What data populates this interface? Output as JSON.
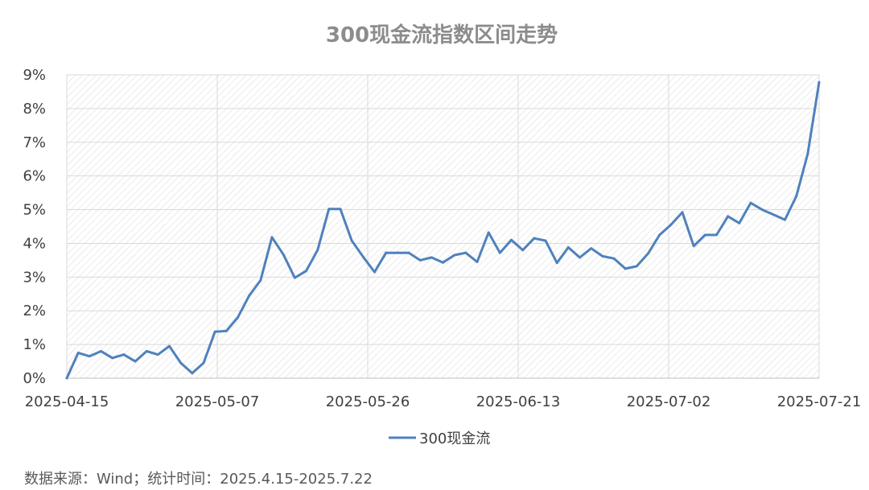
{
  "chart_data": {
    "type": "line",
    "title": "300现金流指数区间走势",
    "xlabel": "",
    "ylabel": "",
    "ylim": [
      0,
      9
    ],
    "y_ticks": [
      "0%",
      "1%",
      "2%",
      "3%",
      "4%",
      "5%",
      "6%",
      "7%",
      "8%",
      "9%"
    ],
    "x_tick_labels": [
      "2025-04-15",
      "2025-05-07",
      "2025-05-26",
      "2025-06-13",
      "2025-07-02",
      "2025-07-21"
    ],
    "grid": true,
    "legend": "bottom",
    "series": [
      {
        "name": "300现金流",
        "color": "#4f81bd",
        "values": [
          0,
          0.75,
          0.65,
          0.8,
          0.6,
          0.7,
          0.5,
          0.8,
          0.7,
          0.95,
          0.45,
          0.15,
          0.45,
          1.38,
          1.4,
          1.8,
          2.45,
          2.9,
          4.18,
          3.67,
          2.98,
          3.18,
          3.8,
          5.02,
          5.02,
          4.08,
          3.6,
          3.15,
          3.72,
          3.72,
          3.72,
          3.5,
          3.58,
          3.43,
          3.65,
          3.72,
          3.45,
          4.32,
          3.72,
          4.1,
          3.8,
          4.15,
          4.08,
          3.42,
          3.88,
          3.58,
          3.85,
          3.62,
          3.55,
          3.25,
          3.32,
          3.7,
          4.25,
          4.55,
          4.92,
          3.92,
          4.25,
          4.25,
          4.8,
          4.6,
          5.2,
          5.0,
          4.85,
          4.7,
          5.4,
          6.65,
          8.78
        ]
      }
    ]
  },
  "source_note": "数据来源：Wind；统计时间：2025.4.15-2025.7.22"
}
